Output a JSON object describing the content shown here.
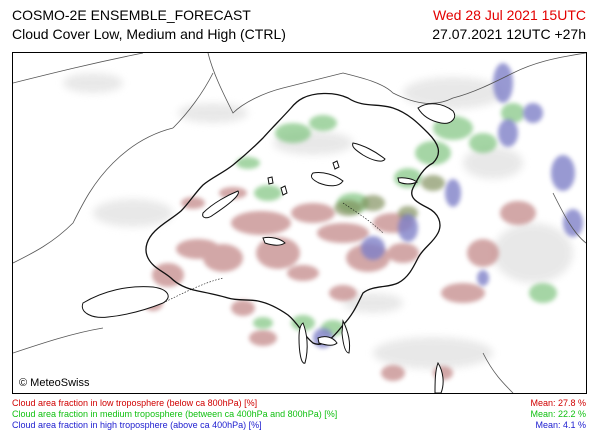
{
  "header": {
    "title_line1": "COSMO-2E ENSEMBLE_FORECAST",
    "title_line2": "Cloud Cover Low, Medium and High (CTRL)",
    "valid_time": "Wed 28 Jul 2021 15UTC",
    "run_time": "27.07.2021 12UTC +27h"
  },
  "map": {
    "copyright": "© MeteoSwiss",
    "layers": [
      {
        "name": "low",
        "color": "#c48a8a"
      },
      {
        "name": "medium",
        "color": "#7fc47f"
      },
      {
        "name": "high",
        "color": "#7f80c8"
      }
    ]
  },
  "legend": {
    "low_label": "Cloud area fraction in low troposphere (below ca 800hPa) [%]",
    "mid_label": "Cloud area fraction in medium troposphere (between ca 400hPa and 800hPa) [%]",
    "high_label": "Cloud area fraction in high troposphere (above ca 400hPa) [%]",
    "low_mean": "Mean:  27.8 %",
    "mid_mean": "Mean:  22.2 %",
    "high_mean": "Mean:   4.1 %",
    "colors": {
      "low": "#d00000",
      "mid": "#10c010",
      "high": "#2020d0"
    }
  }
}
